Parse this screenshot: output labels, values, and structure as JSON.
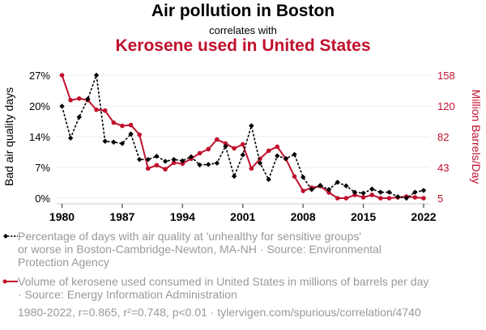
{
  "header": {
    "title": "Air pollution in Boston",
    "subtitle": "correlates with",
    "title2": "Kerosene used in United States"
  },
  "colors": {
    "series1": "#000000",
    "series2": "#c0102c",
    "grid": "#eeeeee",
    "legend_text": "#999999"
  },
  "chart_data": {
    "type": "line",
    "title": "Air pollution in Boston correlates with Kerosene used in United States",
    "xlabel": "",
    "ylabel": "Bad air quality days",
    "ylabel_right": "Million Barrels/Day",
    "x_ticks": [
      "1980",
      "1987",
      "1994",
      "2001",
      "2008",
      "2015",
      "2022"
    ],
    "y_ticks_left": [
      "0%",
      "7%",
      "14%",
      "20%",
      "27%"
    ],
    "y_ticks_right": [
      "5",
      "43",
      "82",
      "120",
      "158"
    ],
    "ylim_left": [
      0,
      27
    ],
    "ylim_right": [
      5,
      158
    ],
    "xlim": [
      1980,
      2022
    ],
    "grid": true,
    "legend_position": "bottom",
    "x": [
      1980,
      1981,
      1982,
      1983,
      1984,
      1985,
      1986,
      1987,
      1988,
      1989,
      1990,
      1991,
      1992,
      1993,
      1994,
      1995,
      1996,
      1997,
      1998,
      1999,
      2000,
      2001,
      2002,
      2003,
      2004,
      2005,
      2006,
      2007,
      2008,
      2009,
      2010,
      2011,
      2012,
      2013,
      2014,
      2015,
      2016,
      2017,
      2018,
      2019,
      2020,
      2021,
      2022
    ],
    "series": [
      {
        "name": "Percentage of days with air quality at 'unhealthy for sensitive groups' or worse in Boston-Cambridge-Newton, MA-NH · Source: Environmental Protection Agency",
        "axis": "left",
        "style": "dashed-diamond",
        "values": [
          20.2,
          13.2,
          17.8,
          21.8,
          27.0,
          12.5,
          12.3,
          12.0,
          14.1,
          8.5,
          8.5,
          9.2,
          8.1,
          8.5,
          8.2,
          9.1,
          7.3,
          7.4,
          7.7,
          11.4,
          4.8,
          9.5,
          15.9,
          7.7,
          4.1,
          9.3,
          8.7,
          9.6,
          4.6,
          1.9,
          2.8,
          1.9,
          3.5,
          2.7,
          1.3,
          1.1,
          2.0,
          1.3,
          1.3,
          0.3,
          0.0,
          1.3,
          1.7
        ]
      },
      {
        "name": "Volume of kerosene used consumed in United States in millions of barrels per day · Source: Energy Information Administration",
        "axis": "right",
        "style": "solid-dot",
        "values": [
          158,
          127,
          129,
          127,
          115,
          114,
          99,
          95,
          96,
          84,
          42,
          46,
          41,
          49,
          48,
          54,
          61,
          66,
          78,
          73,
          67,
          72,
          42,
          54,
          64,
          69,
          54,
          32,
          14,
          18,
          20,
          12,
          5,
          5,
          9,
          6,
          9,
          5,
          5,
          6,
          7,
          6,
          5
        ]
      }
    ]
  },
  "legend": {
    "series1_line1": "Percentage of days with air quality at 'unhealthy for sensitive groups'",
    "series1_line2": "or worse in Boston-Cambridge-Newton, MA-NH · Source: Environmental",
    "series1_line3": "Protection Agency",
    "series2_line1": "Volume of kerosene used consumed in United States in millions of barrels per day",
    "series2_line2": "· Source: Energy Information Administration"
  },
  "footer": {
    "stats": "1980-2022, r=0.865, r²=0.748, p<0.01 · tylervigen.com/spurious/correlation/4740"
  }
}
